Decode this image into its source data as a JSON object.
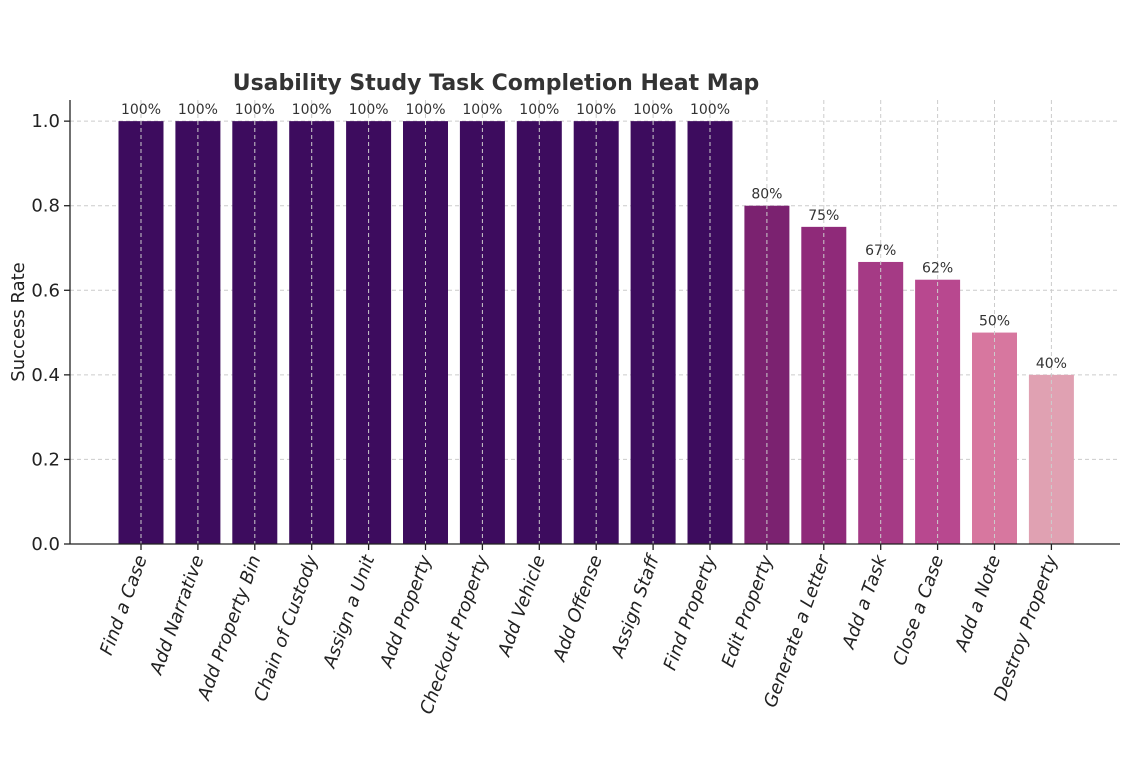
{
  "chart_data": {
    "type": "bar",
    "title": "Usability Study Task Completion Heat Map",
    "xlabel": "",
    "ylabel": "Success Rate",
    "ylim": [
      0,
      1.05
    ],
    "yticks": [
      0.0,
      0.2,
      0.4,
      0.6,
      0.8,
      1.0
    ],
    "ytick_labels": [
      "0.0",
      "0.2",
      "0.4",
      "0.6",
      "0.8",
      "1.0"
    ],
    "grid": true,
    "categories": [
      "Find a Case",
      "Add Narrative",
      "Add Property Bin",
      "Chain of Custody",
      "Assign a Unit",
      "Add Property",
      "Checkout Property",
      "Add Vehicle",
      "Add Offense",
      "Assign Staff",
      "Find Property",
      "Edit Property",
      "Generate a Letter",
      "Add a Task",
      "Close a Case",
      "Add a Note",
      "Destroy Property"
    ],
    "values": [
      1.0,
      1.0,
      1.0,
      1.0,
      1.0,
      1.0,
      1.0,
      1.0,
      1.0,
      1.0,
      1.0,
      0.8,
      0.75,
      0.667,
      0.625,
      0.5,
      0.4
    ],
    "data_labels": [
      "100%",
      "100%",
      "100%",
      "100%",
      "100%",
      "100%",
      "100%",
      "100%",
      "100%",
      "100%",
      "100%",
      "80%",
      "75%",
      "67%",
      "62%",
      "50%",
      "40%"
    ],
    "colors": [
      "#3d0c5e",
      "#3d0c5e",
      "#3d0c5e",
      "#3d0c5e",
      "#3d0c5e",
      "#3d0c5e",
      "#3d0c5e",
      "#3d0c5e",
      "#3d0c5e",
      "#3d0c5e",
      "#3d0c5e",
      "#7b2270",
      "#8f2a79",
      "#a53a85",
      "#b8488f",
      "#d7779f",
      "#e0a1b2"
    ]
  }
}
